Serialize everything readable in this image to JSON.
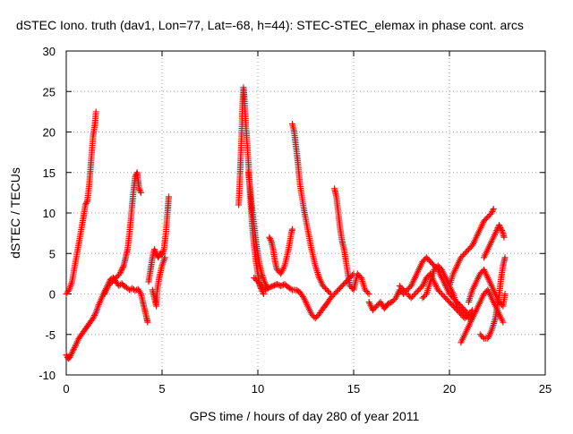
{
  "chart_data": {
    "type": "scatter",
    "title": "dSTEC Iono. truth (dav1, Lon=77, Lat=-68, h=44): STEC-STEC_elemax in phase cont. arcs",
    "xlabel": "GPS time / hours of day 280 of year 2011",
    "ylabel": "dSTEC  / TECUs",
    "xlim": [
      0,
      25
    ],
    "ylim": [
      -10,
      30
    ],
    "xticks": [
      0,
      5,
      10,
      15,
      20,
      25
    ],
    "yticks": [
      -10,
      -5,
      0,
      5,
      10,
      15,
      20,
      25,
      30
    ],
    "x_tick_labels": [
      "0",
      "5",
      "10",
      "15",
      "20",
      "25"
    ],
    "y_tick_labels": [
      "-10",
      "-5",
      "0",
      "5",
      "10",
      "15",
      "20",
      "25",
      "30"
    ],
    "grid": true,
    "marker": "plus",
    "color": "#ff0000",
    "series": [
      {
        "points": [
          [
            0.0,
            0.0
          ],
          [
            0.15,
            0.5
          ],
          [
            0.3,
            1.5
          ],
          [
            0.45,
            3.5
          ],
          [
            0.6,
            5.5
          ],
          [
            0.75,
            7.5
          ],
          [
            0.9,
            9.5
          ],
          [
            1.0,
            11.0
          ],
          [
            1.1,
            11.5
          ],
          [
            1.2,
            13.5
          ],
          [
            1.3,
            16.5
          ],
          [
            1.4,
            19.5
          ],
          [
            1.5,
            21.0
          ],
          [
            1.55,
            22.5
          ]
        ]
      },
      {
        "points": [
          [
            0.0,
            -7.5
          ],
          [
            0.1,
            -8.0
          ],
          [
            0.2,
            -7.8
          ],
          [
            0.35,
            -7.0
          ],
          [
            0.5,
            -6.3
          ],
          [
            0.65,
            -5.5
          ],
          [
            0.8,
            -5.0
          ],
          [
            0.95,
            -4.5
          ],
          [
            1.1,
            -4.0
          ],
          [
            1.25,
            -3.5
          ],
          [
            1.4,
            -3.0
          ],
          [
            1.55,
            -2.3
          ],
          [
            1.7,
            -1.3
          ],
          [
            1.85,
            -0.5
          ],
          [
            2.0,
            0.3
          ],
          [
            2.15,
            1.0
          ],
          [
            2.3,
            1.8
          ],
          [
            2.45,
            2.0
          ],
          [
            2.6,
            1.5
          ],
          [
            2.75,
            1.0
          ],
          [
            2.9,
            1.3
          ],
          [
            3.0,
            1.0
          ],
          [
            3.15,
            0.8
          ],
          [
            3.3,
            0.5
          ],
          [
            3.45,
            0.7
          ],
          [
            3.6,
            0.4
          ],
          [
            3.75,
            0.6
          ],
          [
            3.9,
            0.0
          ],
          [
            4.0,
            -1.0
          ],
          [
            4.1,
            -2.0
          ],
          [
            4.2,
            -3.0
          ],
          [
            4.25,
            -3.5
          ]
        ]
      },
      {
        "points": [
          [
            2.0,
            0.0
          ],
          [
            2.2,
            1.0
          ],
          [
            2.4,
            1.5
          ],
          [
            2.6,
            2.0
          ],
          [
            2.8,
            2.5
          ],
          [
            2.9,
            3.0
          ],
          [
            3.0,
            3.5
          ],
          [
            3.1,
            4.5
          ],
          [
            3.2,
            5.5
          ],
          [
            3.3,
            7.5
          ],
          [
            3.4,
            10.0
          ],
          [
            3.5,
            12.5
          ],
          [
            3.6,
            14.5
          ],
          [
            3.7,
            15.0
          ],
          [
            3.75,
            14.0
          ],
          [
            3.8,
            13.0
          ],
          [
            3.9,
            12.5
          ]
        ]
      },
      {
        "points": [
          [
            4.3,
            1.5
          ],
          [
            4.4,
            3.0
          ],
          [
            4.5,
            4.5
          ],
          [
            4.6,
            5.5
          ],
          [
            4.7,
            5.0
          ],
          [
            4.8,
            4.5
          ],
          [
            4.9,
            5.0
          ],
          [
            5.0,
            4.8
          ],
          [
            5.1,
            5.5
          ],
          [
            5.2,
            7.5
          ],
          [
            5.3,
            10.5
          ],
          [
            5.35,
            12.0
          ]
        ]
      },
      {
        "points": [
          [
            4.5,
            0.5
          ],
          [
            4.6,
            -0.5
          ],
          [
            4.7,
            -1.5
          ],
          [
            4.75,
            0.5
          ],
          [
            4.85,
            2.0
          ],
          [
            5.0,
            3.5
          ],
          [
            5.15,
            4.5
          ]
        ]
      },
      {
        "points": [
          [
            9.0,
            11.0
          ],
          [
            9.05,
            13.5
          ],
          [
            9.1,
            16.5
          ],
          [
            9.15,
            19.5
          ],
          [
            9.2,
            23.5
          ],
          [
            9.25,
            25.5
          ],
          [
            9.3,
            24.0
          ],
          [
            9.4,
            20.0
          ],
          [
            9.5,
            16.5
          ],
          [
            9.6,
            12.0
          ],
          [
            9.7,
            8.5
          ],
          [
            9.8,
            6.0
          ],
          [
            9.9,
            4.0
          ],
          [
            10.0,
            2.5
          ],
          [
            10.1,
            1.0
          ],
          [
            10.2,
            0.5
          ],
          [
            10.3,
            0.0
          ]
        ]
      },
      {
        "points": [
          [
            9.5,
            15.0
          ],
          [
            9.6,
            13.0
          ],
          [
            9.7,
            10.5
          ],
          [
            9.8,
            8.5
          ],
          [
            9.9,
            6.5
          ],
          [
            10.0,
            5.0
          ],
          [
            10.1,
            3.5
          ],
          [
            10.2,
            2.5
          ],
          [
            10.3,
            1.8
          ],
          [
            10.4,
            1.2
          ],
          [
            10.5,
            0.8
          ]
        ]
      },
      {
        "points": [
          [
            9.8,
            2.0
          ],
          [
            10.0,
            1.5
          ],
          [
            10.2,
            1.0
          ],
          [
            10.4,
            0.5
          ],
          [
            10.6,
            0.8
          ],
          [
            10.8,
            1.0
          ],
          [
            11.0,
            1.2
          ],
          [
            11.2,
            1.0
          ],
          [
            11.4,
            1.2
          ],
          [
            11.6,
            0.8
          ],
          [
            11.8,
            0.5
          ],
          [
            12.0,
            0.5
          ],
          [
            12.2,
            0.2
          ],
          [
            12.4,
            -0.5
          ],
          [
            12.6,
            -1.5
          ],
          [
            12.8,
            -2.5
          ],
          [
            13.0,
            -3.0
          ],
          [
            13.2,
            -2.5
          ],
          [
            13.4,
            -1.8
          ],
          [
            13.6,
            -1.2
          ],
          [
            13.8,
            -0.5
          ],
          [
            14.0,
            0.0
          ],
          [
            14.2,
            0.5
          ],
          [
            14.4,
            1.0
          ],
          [
            14.6,
            1.5
          ],
          [
            14.8,
            2.0
          ],
          [
            15.0,
            2.5
          ]
        ]
      },
      {
        "points": [
          [
            10.6,
            7.0
          ],
          [
            10.7,
            6.5
          ],
          [
            10.8,
            5.5
          ],
          [
            10.9,
            4.0
          ],
          [
            11.0,
            3.0
          ],
          [
            11.2,
            2.5
          ],
          [
            11.4,
            3.5
          ],
          [
            11.6,
            5.5
          ],
          [
            11.75,
            7.5
          ],
          [
            11.8,
            8.0
          ]
        ]
      },
      {
        "points": [
          [
            11.8,
            21.0
          ],
          [
            11.9,
            20.0
          ],
          [
            12.0,
            18.0
          ],
          [
            12.1,
            16.0
          ],
          [
            12.2,
            13.5
          ],
          [
            12.4,
            10.5
          ],
          [
            12.6,
            8.0
          ],
          [
            12.8,
            5.5
          ],
          [
            13.0,
            3.5
          ],
          [
            13.2,
            2.0
          ],
          [
            13.4,
            1.0
          ],
          [
            13.6,
            0.5
          ],
          [
            13.8,
            0.0
          ]
        ]
      },
      {
        "points": [
          [
            14.0,
            13.0
          ],
          [
            14.1,
            12.0
          ],
          [
            14.2,
            10.0
          ],
          [
            14.3,
            8.0
          ],
          [
            14.4,
            6.5
          ],
          [
            14.5,
            5.5
          ],
          [
            14.6,
            4.0
          ],
          [
            14.7,
            2.5
          ],
          [
            14.8,
            1.0
          ],
          [
            15.0,
            0.5
          ],
          [
            15.2,
            2.5
          ],
          [
            15.4,
            2.0
          ],
          [
            15.6,
            0.5
          ],
          [
            15.8,
            0.0
          ]
        ]
      },
      {
        "points": [
          [
            15.8,
            -1.0
          ],
          [
            16.0,
            -2.0
          ],
          [
            16.2,
            -1.5
          ],
          [
            16.4,
            -1.0
          ],
          [
            16.6,
            -1.8
          ],
          [
            16.8,
            -1.2
          ],
          [
            17.0,
            -1.0
          ],
          [
            17.2,
            -0.5
          ],
          [
            17.4,
            0.5
          ],
          [
            17.6,
            0.0
          ],
          [
            17.8,
            0.5
          ],
          [
            18.0,
            1.0
          ],
          [
            18.2,
            2.0
          ],
          [
            18.4,
            3.0
          ],
          [
            18.6,
            4.0
          ],
          [
            18.8,
            4.5
          ],
          [
            19.0,
            4.0
          ],
          [
            19.2,
            3.5
          ],
          [
            19.4,
            3.0
          ],
          [
            19.6,
            2.0
          ],
          [
            19.8,
            1.0
          ],
          [
            20.0,
            0.0
          ],
          [
            20.2,
            -0.5
          ],
          [
            20.4,
            -1.0
          ],
          [
            20.6,
            -1.5
          ],
          [
            20.8,
            -2.0
          ],
          [
            21.0,
            -2.5
          ]
        ]
      },
      {
        "points": [
          [
            17.4,
            1.0
          ],
          [
            17.6,
            0.5
          ],
          [
            17.8,
            0.0
          ],
          [
            18.0,
            -0.5
          ],
          [
            18.2,
            0.0
          ],
          [
            18.4,
            0.5
          ],
          [
            18.6,
            1.0
          ],
          [
            18.8,
            2.0
          ],
          [
            19.0,
            2.5
          ],
          [
            19.2,
            1.5
          ],
          [
            19.4,
            0.5
          ],
          [
            19.6,
            0.0
          ],
          [
            19.8,
            -0.5
          ],
          [
            20.0,
            -1.0
          ],
          [
            20.2,
            -1.5
          ],
          [
            20.4,
            -2.0
          ],
          [
            20.6,
            -2.5
          ],
          [
            20.8,
            -3.0
          ],
          [
            21.0,
            -2.5
          ],
          [
            21.2,
            -2.0
          ]
        ]
      },
      {
        "points": [
          [
            18.6,
            -0.5
          ],
          [
            18.8,
            0.0
          ],
          [
            19.0,
            1.5
          ],
          [
            19.2,
            3.0
          ],
          [
            19.4,
            3.5
          ],
          [
            19.6,
            3.0
          ],
          [
            19.8,
            2.0
          ],
          [
            20.0,
            1.0
          ],
          [
            20.2,
            0.0
          ],
          [
            20.4,
            -1.5
          ],
          [
            20.6,
            -2.0
          ],
          [
            20.8,
            -2.5
          ],
          [
            21.0,
            -3.0
          ],
          [
            21.2,
            -2.5
          ]
        ]
      },
      {
        "points": [
          [
            20.0,
            1.0
          ],
          [
            20.2,
            2.5
          ],
          [
            20.4,
            3.5
          ],
          [
            20.6,
            4.5
          ],
          [
            20.8,
            5.0
          ],
          [
            21.0,
            5.5
          ],
          [
            21.2,
            6.0
          ],
          [
            21.4,
            7.0
          ],
          [
            21.6,
            8.0
          ],
          [
            21.8,
            9.0
          ],
          [
            22.0,
            9.5
          ],
          [
            22.2,
            10.0
          ],
          [
            22.3,
            10.5
          ]
        ]
      },
      {
        "points": [
          [
            20.6,
            -6.0
          ],
          [
            20.8,
            -5.0
          ],
          [
            21.0,
            -4.0
          ],
          [
            21.2,
            -3.0
          ],
          [
            21.4,
            -2.0
          ],
          [
            21.6,
            -1.0
          ],
          [
            21.8,
            0.0
          ],
          [
            22.0,
            0.5
          ],
          [
            22.2,
            -0.5
          ],
          [
            22.4,
            -1.5
          ],
          [
            22.6,
            -2.5
          ],
          [
            22.8,
            -3.5
          ]
        ]
      },
      {
        "points": [
          [
            21.6,
            -5.0
          ],
          [
            21.8,
            -5.5
          ],
          [
            22.0,
            -5.5
          ],
          [
            22.2,
            -4.5
          ],
          [
            22.4,
            -3.0
          ],
          [
            22.5,
            -1.5
          ],
          [
            22.6,
            0.0
          ],
          [
            22.7,
            2.0
          ],
          [
            22.8,
            3.5
          ],
          [
            22.9,
            4.5
          ]
        ]
      },
      {
        "points": [
          [
            21.8,
            4.5
          ],
          [
            22.0,
            5.5
          ],
          [
            22.2,
            6.5
          ],
          [
            22.4,
            7.5
          ],
          [
            22.5,
            8.0
          ],
          [
            22.6,
            8.5
          ],
          [
            22.7,
            8.0
          ],
          [
            22.8,
            7.5
          ],
          [
            22.85,
            7.0
          ]
        ]
      },
      {
        "points": [
          [
            21.0,
            -1.0
          ],
          [
            21.2,
            0.5
          ],
          [
            21.4,
            1.5
          ],
          [
            21.6,
            2.5
          ],
          [
            21.8,
            3.0
          ],
          [
            22.0,
            2.0
          ],
          [
            22.2,
            1.0
          ],
          [
            22.4,
            0.0
          ],
          [
            22.6,
            -1.0
          ],
          [
            22.8,
            -1.5
          ],
          [
            22.9,
            0.0
          ]
        ]
      }
    ]
  }
}
